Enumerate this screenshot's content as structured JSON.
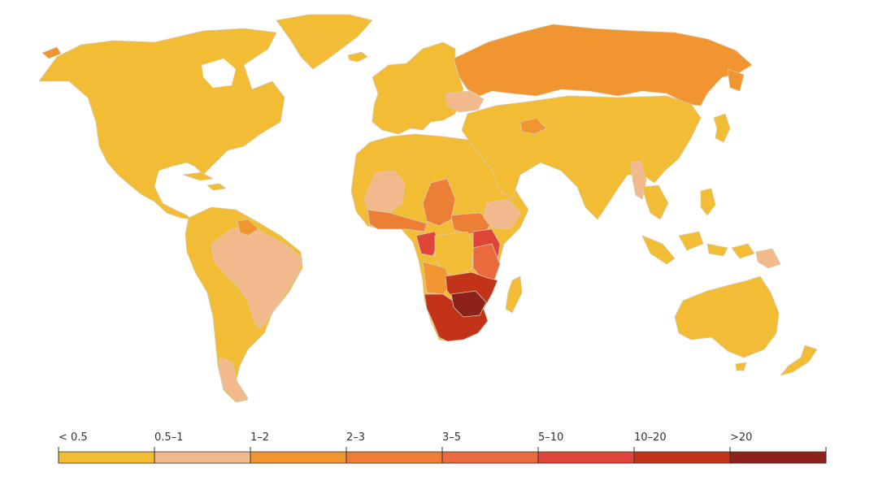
{
  "map": {
    "colors": {
      "lt_0_5": "#f2bc35",
      "r0_5_1": "#f2b98c",
      "r1_2": "#f0952f",
      "r2_3": "#ec7e36",
      "r3_5": "#ea6a3e",
      "r5_10": "#e0453a",
      "r10_20": "#c23319",
      "gt_20": "#8c2219"
    }
  },
  "legend": {
    "items": [
      {
        "label": "< 0.5",
        "color": "#f2bc35"
      },
      {
        "label": "0.5–1",
        "color": "#f2b98c"
      },
      {
        "label": "1–2",
        "color": "#f0952f"
      },
      {
        "label": "2–3",
        "color": "#ec7e36"
      },
      {
        "label": "3–5",
        "color": "#ea6a3e"
      },
      {
        "label": "5–10",
        "color": "#e0453a"
      },
      {
        "label": "10–20",
        "color": "#c23319"
      },
      {
        "label": ">20",
        "color": "#8c2219"
      }
    ]
  }
}
